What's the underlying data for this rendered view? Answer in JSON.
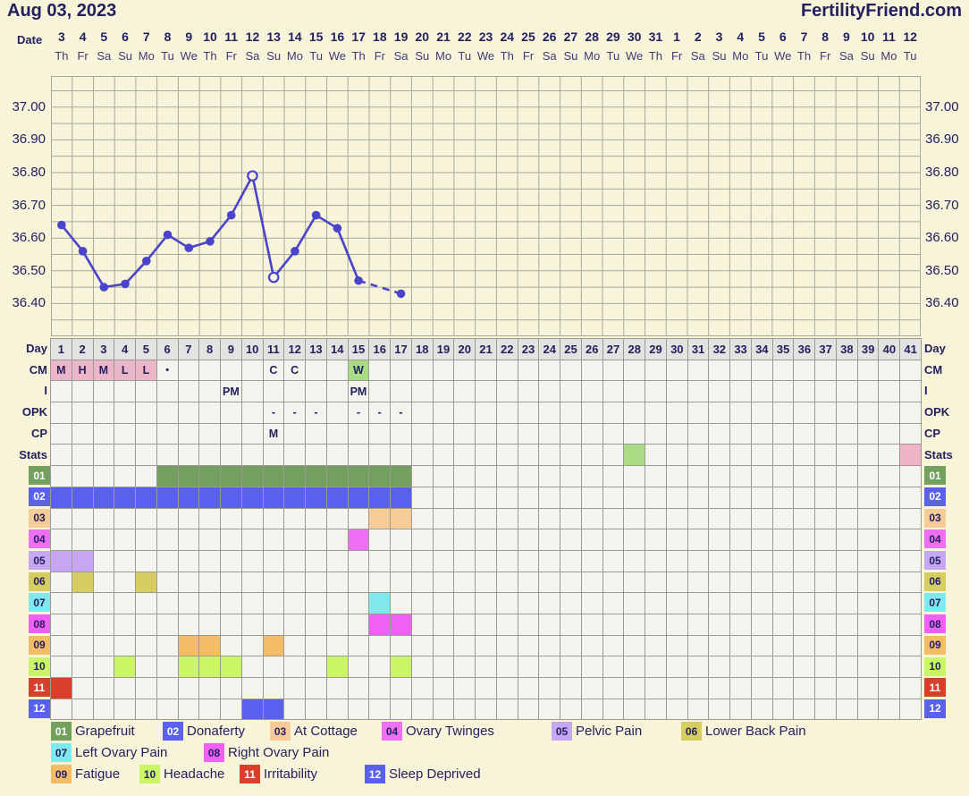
{
  "page": {
    "title": "Aug 03, 2023",
    "site": "FertilityFriend.com"
  },
  "colors": {
    "page_bg": "#f7f4da",
    "navy": "#23205f",
    "plot_grid_line": "#a9a99b",
    "grid_line": "#9b9b93",
    "cell_bg": "#f4f4ee",
    "day_header_bg": "#e3e3e1",
    "temp_line": "#4a43cb",
    "cm_pink": "#ebb6c9",
    "cm_green": "#aadb85",
    "stats_green": "#aadb85",
    "stats_pink": "#f0b4c8"
  },
  "date_header": {
    "label": "Date",
    "dates": [
      3,
      4,
      5,
      6,
      7,
      8,
      9,
      10,
      11,
      12,
      13,
      14,
      15,
      16,
      17,
      18,
      19,
      20,
      21,
      22,
      23,
      24,
      25,
      26,
      27,
      28,
      29,
      30,
      31,
      1,
      2,
      3,
      4,
      5,
      6,
      7,
      8,
      9,
      10,
      11,
      12
    ],
    "weekdays": [
      "Th",
      "Fr",
      "Sa",
      "Su",
      "Mo",
      "Tu",
      "We",
      "Th",
      "Fr",
      "Sa",
      "Su",
      "Mo",
      "Tu",
      "We",
      "Th",
      "Fr",
      "Sa",
      "Su",
      "Mo",
      "Tu",
      "We",
      "Th",
      "Fr",
      "Sa",
      "Su",
      "Mo",
      "Tu",
      "We",
      "Th",
      "Fr",
      "Sa",
      "Su",
      "Mo",
      "Tu",
      "We",
      "Th",
      "Fr",
      "Sa",
      "Su",
      "Mo",
      "Tu"
    ]
  },
  "chart_data": {
    "type": "line",
    "title": "Basal body temperature (°C) by cycle day",
    "xlabel": "Cycle day",
    "ylabel": "Temperature °C",
    "ylim": [
      36.3,
      37.095
    ],
    "y_tick_labels": [
      "37.00",
      "36.90",
      "36.80",
      "36.70",
      "36.60",
      "36.50",
      "36.40"
    ],
    "y_tick_values": [
      37.0,
      36.9,
      36.8,
      36.7,
      36.6,
      36.5,
      36.4
    ],
    "y_minor_step": 0.05,
    "x_range_days": 41,
    "grid": true,
    "series": [
      {
        "name": "BBT",
        "points": [
          {
            "day": 1,
            "temp": 36.64
          },
          {
            "day": 2,
            "temp": 36.56
          },
          {
            "day": 3,
            "temp": 36.45
          },
          {
            "day": 4,
            "temp": 36.46
          },
          {
            "day": 5,
            "temp": 36.53
          },
          {
            "day": 6,
            "temp": 36.61
          },
          {
            "day": 7,
            "temp": 36.57
          },
          {
            "day": 8,
            "temp": 36.59
          },
          {
            "day": 9,
            "temp": 36.67
          },
          {
            "day": 10,
            "temp": 36.79,
            "open": true
          },
          {
            "day": 11,
            "temp": 36.48,
            "open": true
          },
          {
            "day": 12,
            "temp": 36.56
          },
          {
            "day": 13,
            "temp": 36.67
          },
          {
            "day": 14,
            "temp": 36.63
          },
          {
            "day": 15,
            "temp": 36.47
          },
          {
            "day": 17,
            "temp": 36.43,
            "dashed": true
          }
        ]
      }
    ]
  },
  "day_row": {
    "label": "Day",
    "days": [
      1,
      2,
      3,
      4,
      5,
      6,
      7,
      8,
      9,
      10,
      11,
      12,
      13,
      14,
      15,
      16,
      17,
      18,
      19,
      20,
      21,
      22,
      23,
      24,
      25,
      26,
      27,
      28,
      29,
      30,
      31,
      32,
      33,
      34,
      35,
      36,
      37,
      38,
      39,
      40,
      41
    ]
  },
  "detail_rows": [
    {
      "key": "cm",
      "label": "CM",
      "cells": [
        {
          "day": 1,
          "text": "M",
          "bg": "cm_pink"
        },
        {
          "day": 2,
          "text": "H",
          "bg": "cm_pink"
        },
        {
          "day": 3,
          "text": "M",
          "bg": "cm_pink"
        },
        {
          "day": 4,
          "text": "L",
          "bg": "cm_pink"
        },
        {
          "day": 5,
          "text": "L",
          "bg": "cm_pink"
        },
        {
          "day": 6,
          "text": "•"
        },
        {
          "day": 11,
          "text": "C"
        },
        {
          "day": 12,
          "text": "C"
        },
        {
          "day": 15,
          "text": "W",
          "bg": "cm_green"
        }
      ]
    },
    {
      "key": "i",
      "label": "I",
      "cells": [
        {
          "day": 9,
          "text": "PM"
        },
        {
          "day": 15,
          "text": "PM"
        }
      ]
    },
    {
      "key": "opk",
      "label": "OPK",
      "cells": [
        {
          "day": 11,
          "text": "-"
        },
        {
          "day": 12,
          "text": "-"
        },
        {
          "day": 13,
          "text": "-"
        },
        {
          "day": 15,
          "text": "-"
        },
        {
          "day": 16,
          "text": "-"
        },
        {
          "day": 17,
          "text": "-"
        }
      ]
    },
    {
      "key": "cp",
      "label": "CP",
      "cells": [
        {
          "day": 11,
          "text": "M"
        }
      ]
    },
    {
      "key": "stats",
      "label": "Stats",
      "cells": [
        {
          "day": 28,
          "bg": "stats_green"
        },
        {
          "day": 41,
          "bg": "stats_pink"
        }
      ]
    }
  ],
  "symptoms": [
    {
      "id": "01",
      "name": "Grapefruit",
      "color": "#74a05e",
      "badge_text": "light",
      "days": [
        6,
        7,
        8,
        9,
        10,
        11,
        12,
        13,
        14,
        15,
        16,
        17
      ]
    },
    {
      "id": "02",
      "name": "Donaferty",
      "color": "#5a61ef",
      "badge_text": "light",
      "days": [
        1,
        2,
        3,
        4,
        5,
        6,
        7,
        8,
        9,
        10,
        11,
        12,
        13,
        14,
        15,
        16,
        17
      ]
    },
    {
      "id": "03",
      "name": "At Cottage",
      "color": "#f7cb97",
      "badge_text": "dark",
      "days": [
        16,
        17
      ]
    },
    {
      "id": "04",
      "name": "Ovary Twinges",
      "color": "#ee70f2",
      "badge_text": "dark",
      "days": [
        15
      ]
    },
    {
      "id": "05",
      "name": "Pelvic Pain",
      "color": "#c7a7f3",
      "badge_text": "dark",
      "days": [
        1,
        2
      ]
    },
    {
      "id": "06",
      "name": "Lower Back Pain",
      "color": "#d6cd62",
      "badge_text": "dark",
      "days": [
        2,
        5
      ]
    },
    {
      "id": "07",
      "name": "Left Ovary Pain",
      "color": "#7fe9ed",
      "badge_text": "dark",
      "days": [
        16
      ]
    },
    {
      "id": "08",
      "name": "Right Ovary Pain",
      "color": "#f060f4",
      "badge_text": "dark",
      "days": [
        16,
        17
      ]
    },
    {
      "id": "09",
      "name": "Fatigue",
      "color": "#f3bd68",
      "badge_text": "dark",
      "days": [
        7,
        8,
        11
      ]
    },
    {
      "id": "10",
      "name": "Headache",
      "color": "#caf566",
      "badge_text": "dark",
      "days": [
        4,
        7,
        8,
        9,
        14,
        17
      ]
    },
    {
      "id": "11",
      "name": "Irritability",
      "color": "#d8402c",
      "badge_text": "light",
      "days": [
        1
      ]
    },
    {
      "id": "12",
      "name": "Sleep Deprived",
      "color": "#5a61ef",
      "badge_text": "light",
      "days": [
        10,
        11
      ]
    }
  ],
  "legend": {
    "rows": [
      [
        "01",
        "02",
        "03",
        "04",
        "05",
        "06"
      ],
      [
        "07",
        "08"
      ],
      [
        "09",
        "10",
        "11",
        "12"
      ]
    ]
  }
}
